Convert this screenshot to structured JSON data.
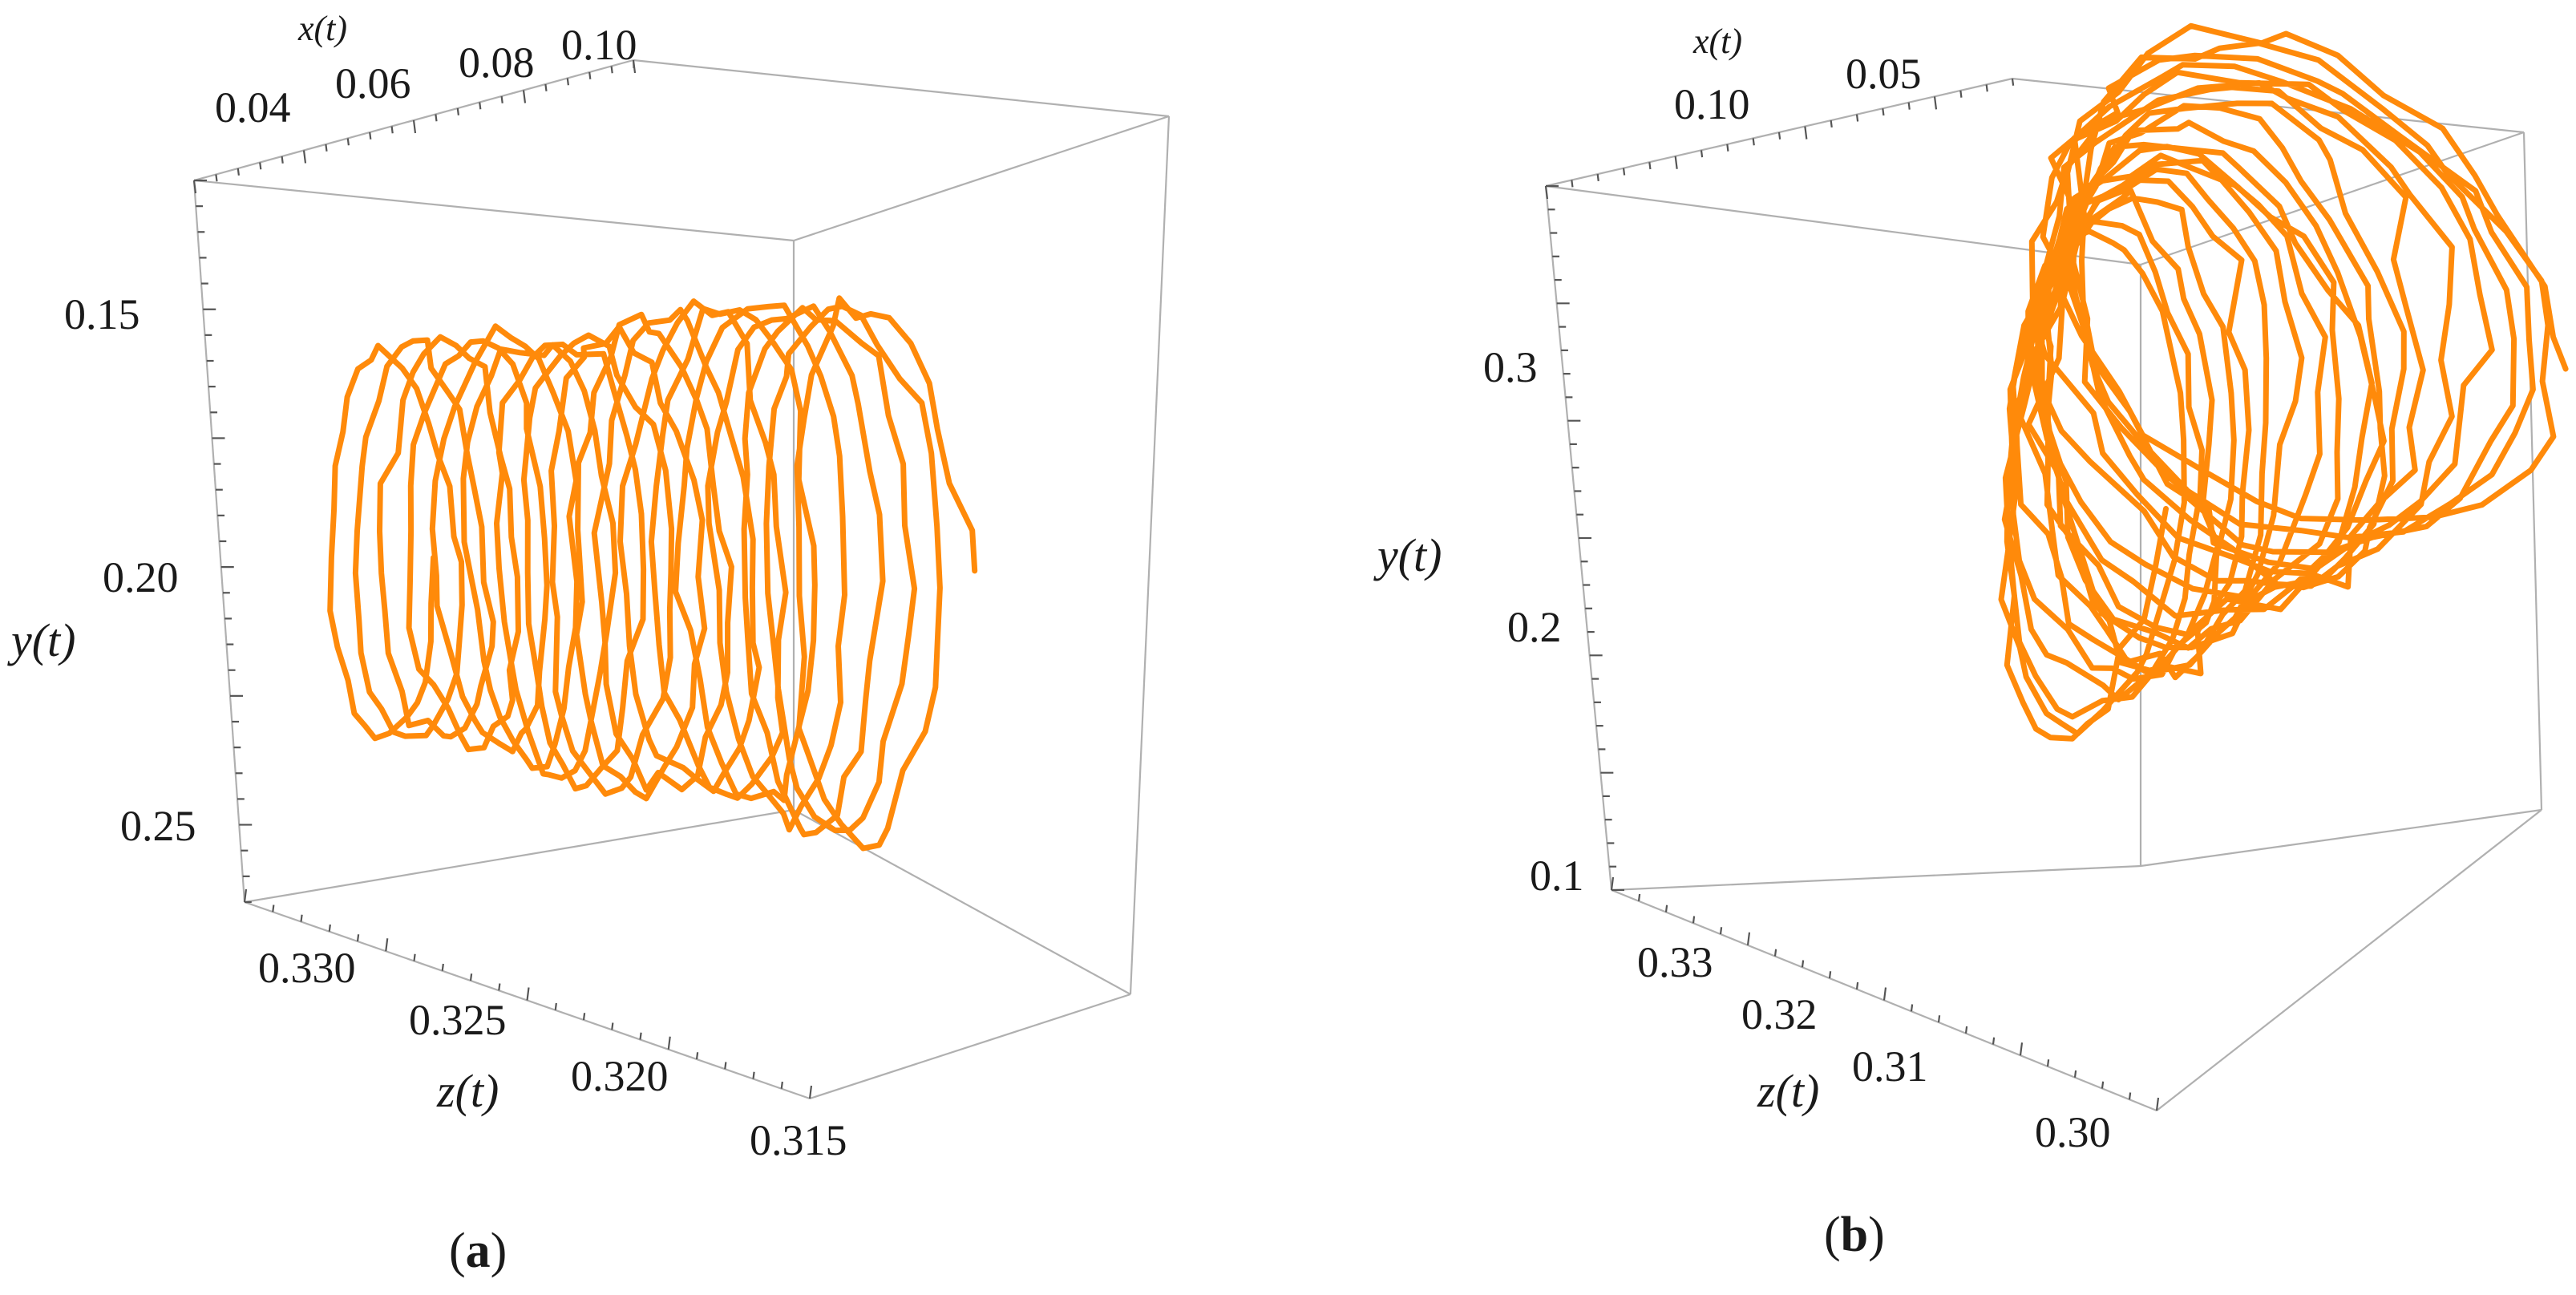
{
  "figure": {
    "panels": [
      {
        "id": "a",
        "label": "a",
        "x_axis": {
          "label": "x(t)",
          "ticks": [
            "0.04",
            "0.06",
            "0.08",
            "0.10"
          ]
        },
        "y_axis": {
          "label": "y(t)",
          "ticks": [
            "0.15",
            "0.20",
            "0.25"
          ]
        },
        "z_axis": {
          "label": "z(t)",
          "ticks": [
            "0.330",
            "0.325",
            "0.320",
            "0.315"
          ]
        }
      },
      {
        "id": "b",
        "label": "b",
        "x_axis": {
          "label": "x(t)",
          "ticks": [
            "0.10",
            "0.05"
          ]
        },
        "y_axis": {
          "label": "y(t)",
          "ticks": [
            "0.3",
            "0.2",
            "0.1"
          ]
        },
        "z_axis": {
          "label": "z(t)",
          "ticks": [
            "0.33",
            "0.32",
            "0.31",
            "0.30"
          ]
        }
      }
    ]
  },
  "chart_data": [
    {
      "type": "line",
      "subtype": "3d-trajectory",
      "title": "",
      "series_color": "#ff8a0a",
      "xlabel": "x(t)",
      "ylabel": "y(t)",
      "zlabel": "z(t)",
      "xlim": [
        0.03,
        0.11
      ],
      "ylim": [
        0.13,
        0.27
      ],
      "zlim": [
        0.315,
        0.333
      ],
      "y_axis_reversed": true,
      "shape": "helical spiral (tube) along z",
      "turns": 18,
      "x_center": 0.07,
      "x_amplitude": 0.035,
      "y_center": 0.195,
      "y_amplitude": 0.06,
      "z_start": 0.331,
      "z_end": 0.318,
      "grid": false
    },
    {
      "type": "line",
      "subtype": "3d-trajectory",
      "title": "",
      "series_color": "#ff8a0a",
      "xlabel": "x(t)",
      "ylabel": "y(t)",
      "zlabel": "z(t)",
      "xlim": [
        0.0,
        0.13
      ],
      "ylim": [
        0.08,
        0.35
      ],
      "zlim": [
        0.295,
        0.335
      ],
      "shape": "tightening spiral (cone) along z",
      "turns": 20,
      "x_center": 0.06,
      "x_amplitude": 0.045,
      "y_center": 0.22,
      "y_amplitude": 0.11,
      "z_start": 0.325,
      "z_end": 0.301,
      "grid": false
    }
  ]
}
